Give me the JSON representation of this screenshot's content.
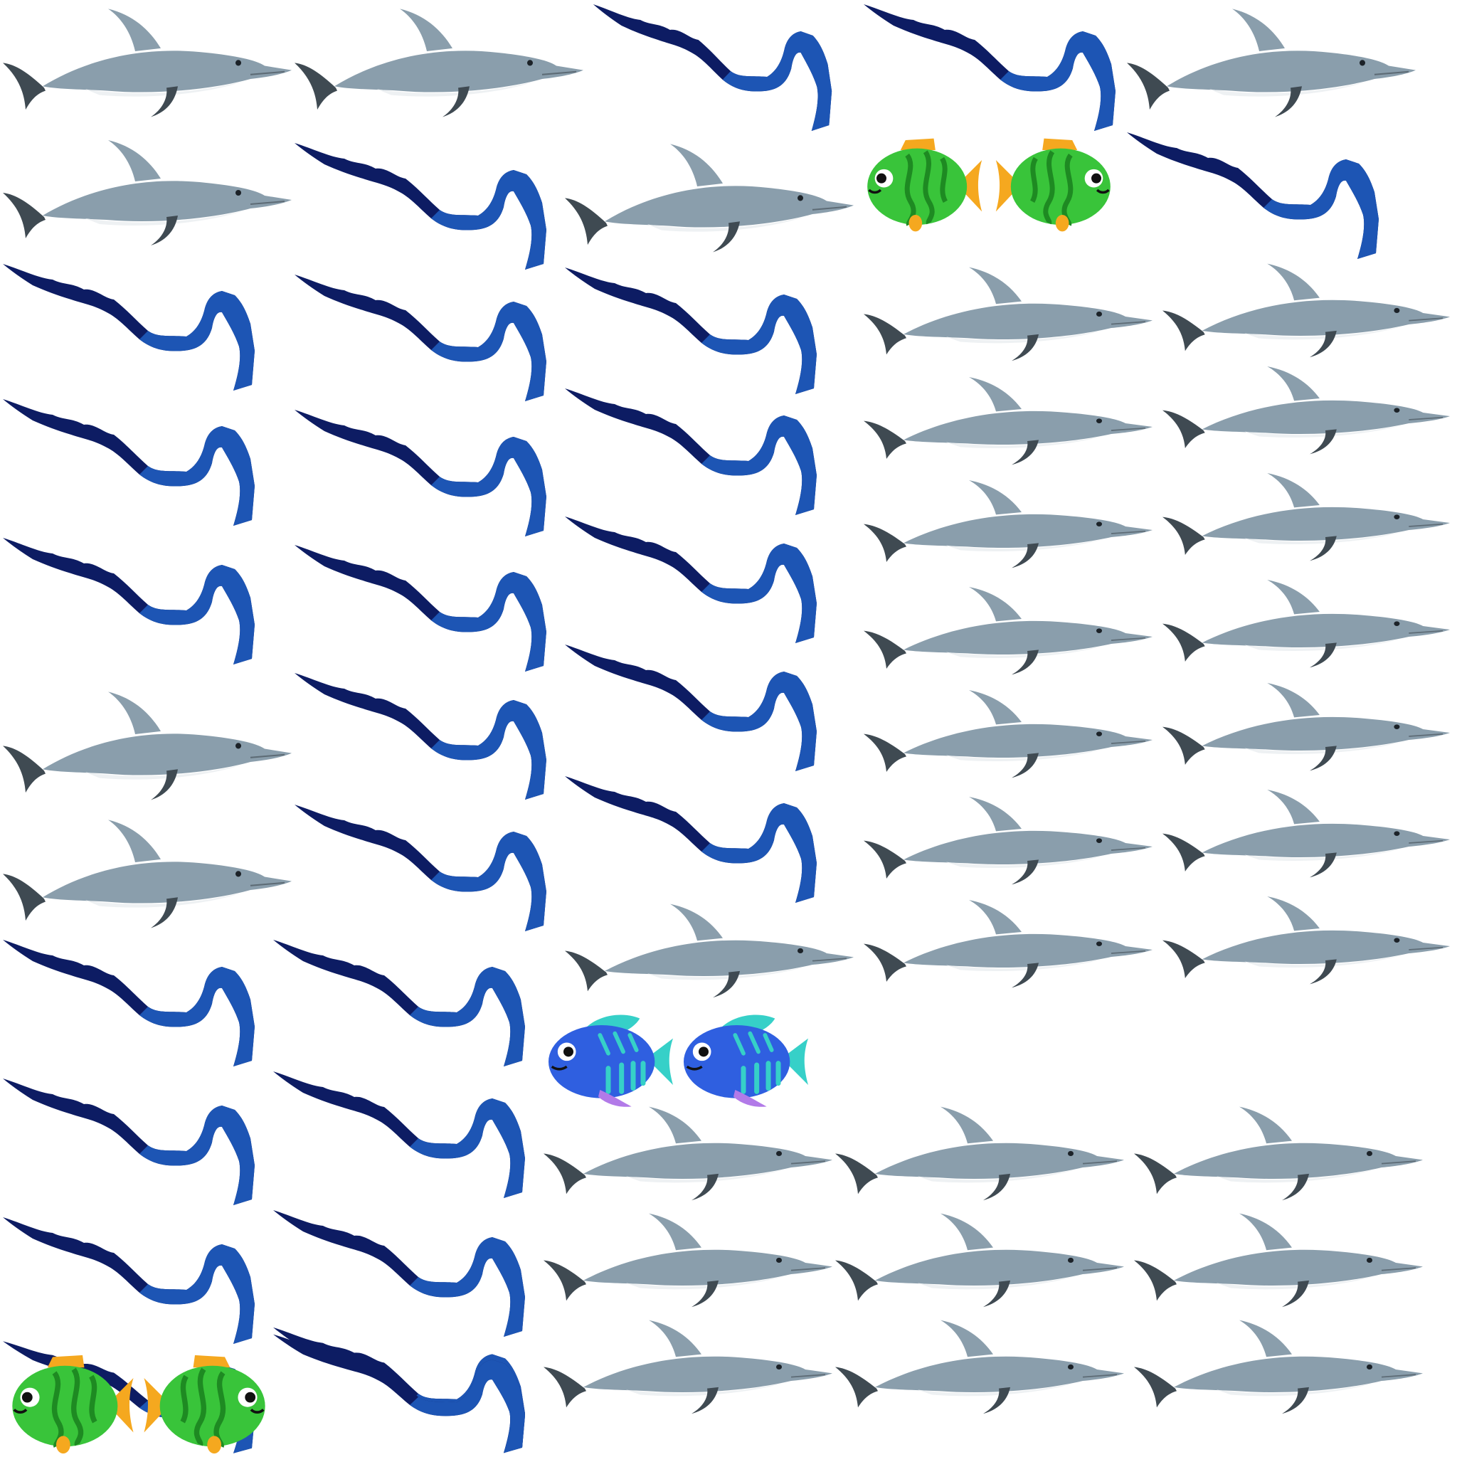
{
  "canvas": {
    "background": "#ffffff"
  },
  "icons": {
    "dolphin": "dolphin-icon",
    "eel": "eel-icon",
    "green_fish": "green-fish-icon",
    "blue_fish": "blue-fish-icon"
  },
  "colors": {
    "dolphin_body": "#8a9eac",
    "dolphin_dark": "#3f4a52",
    "dolphin_belly": "#eef1f3",
    "eel_dark": "#0d1c63",
    "eel_light": "#1d55b4",
    "green_fish_body": "#39c43a",
    "green_fish_stripe": "#1e8a22",
    "green_fish_fin": "#f5a81f",
    "blue_fish_body": "#2f5fe0",
    "blue_fish_stripe": "#36d0c8",
    "blue_fish_fin": "#b27ae8"
  },
  "pieces": [
    {
      "kind": "dolphin",
      "id": "dolphin-r1-a"
    },
    {
      "kind": "dolphin",
      "id": "dolphin-r1-b"
    },
    {
      "kind": "eel",
      "id": "eel-r1-a"
    },
    {
      "kind": "eel",
      "id": "eel-r1-b"
    },
    {
      "kind": "dolphin",
      "id": "dolphin-r1-c"
    },
    {
      "kind": "dolphin",
      "id": "dolphin-r2-a"
    },
    {
      "kind": "eel",
      "id": "eel-r2-a"
    },
    {
      "kind": "dolphin",
      "id": "dolphin-r2-b"
    },
    {
      "kind": "green_fish",
      "id": "green-fish-pair-top"
    },
    {
      "kind": "eel",
      "id": "eel-r2-b"
    },
    {
      "kind": "eel",
      "id": "eel-r3-a"
    },
    {
      "kind": "eel",
      "id": "eel-r3-b"
    },
    {
      "kind": "eel",
      "id": "eel-r3-c"
    },
    {
      "kind": "dolphin",
      "id": "dolphin-r3-a"
    },
    {
      "kind": "dolphin",
      "id": "dolphin-r3-b"
    },
    {
      "kind": "eel",
      "id": "eel-r4-a"
    },
    {
      "kind": "eel",
      "id": "eel-r4-b"
    },
    {
      "kind": "eel",
      "id": "eel-r4-c"
    },
    {
      "kind": "dolphin",
      "id": "dolphin-r4-a"
    },
    {
      "kind": "dolphin",
      "id": "dolphin-r4-b"
    },
    {
      "kind": "eel",
      "id": "eel-r5-a"
    },
    {
      "kind": "eel",
      "id": "eel-r5-b"
    },
    {
      "kind": "eel",
      "id": "eel-r5-c"
    },
    {
      "kind": "dolphin",
      "id": "dolphin-r5-a"
    },
    {
      "kind": "dolphin",
      "id": "dolphin-r5-b"
    },
    {
      "kind": "dolphin",
      "id": "dolphin-r6-a"
    },
    {
      "kind": "eel",
      "id": "eel-r6-a"
    },
    {
      "kind": "eel",
      "id": "eel-r6-b"
    },
    {
      "kind": "dolphin",
      "id": "dolphin-r6-b"
    },
    {
      "kind": "dolphin",
      "id": "dolphin-r6-c"
    },
    {
      "kind": "dolphin",
      "id": "dolphin-r7-a"
    },
    {
      "kind": "eel",
      "id": "eel-r7-a"
    },
    {
      "kind": "eel",
      "id": "eel-r7-b"
    },
    {
      "kind": "dolphin",
      "id": "dolphin-r7-b"
    },
    {
      "kind": "dolphin",
      "id": "dolphin-r7-c"
    },
    {
      "kind": "eel",
      "id": "eel-r8-a"
    },
    {
      "kind": "eel",
      "id": "eel-r8-b"
    },
    {
      "kind": "dolphin",
      "id": "dolphin-r8-a"
    },
    {
      "kind": "dolphin",
      "id": "dolphin-r8-b"
    },
    {
      "kind": "dolphin",
      "id": "dolphin-r8-c"
    },
    {
      "kind": "eel",
      "id": "eel-r9-a"
    },
    {
      "kind": "eel",
      "id": "eel-r9-b"
    },
    {
      "kind": "blue_fish",
      "id": "blue-fish-pair"
    },
    {
      "kind": "dolphin",
      "id": "dolphin-r9-a"
    },
    {
      "kind": "dolphin",
      "id": "dolphin-r9-b"
    },
    {
      "kind": "eel",
      "id": "eel-r10-a"
    },
    {
      "kind": "eel",
      "id": "eel-r10-b"
    },
    {
      "kind": "dolphin",
      "id": "dolphin-r10-a"
    },
    {
      "kind": "dolphin",
      "id": "dolphin-r10-b"
    },
    {
      "kind": "dolphin",
      "id": "dolphin-r10-c"
    },
    {
      "kind": "eel",
      "id": "eel-r11-a"
    },
    {
      "kind": "eel",
      "id": "eel-r11-b"
    },
    {
      "kind": "dolphin",
      "id": "dolphin-r11-a"
    },
    {
      "kind": "dolphin",
      "id": "dolphin-r11-b"
    },
    {
      "kind": "dolphin",
      "id": "dolphin-r11-c"
    },
    {
      "kind": "green_fish",
      "id": "green-fish-pair-bottom"
    },
    {
      "kind": "eel",
      "id": "eel-r12-a"
    },
    {
      "kind": "dolphin",
      "id": "dolphin-r12-a"
    },
    {
      "kind": "dolphin",
      "id": "dolphin-r12-b"
    },
    {
      "kind": "dolphin",
      "id": "dolphin-r12-c"
    }
  ]
}
